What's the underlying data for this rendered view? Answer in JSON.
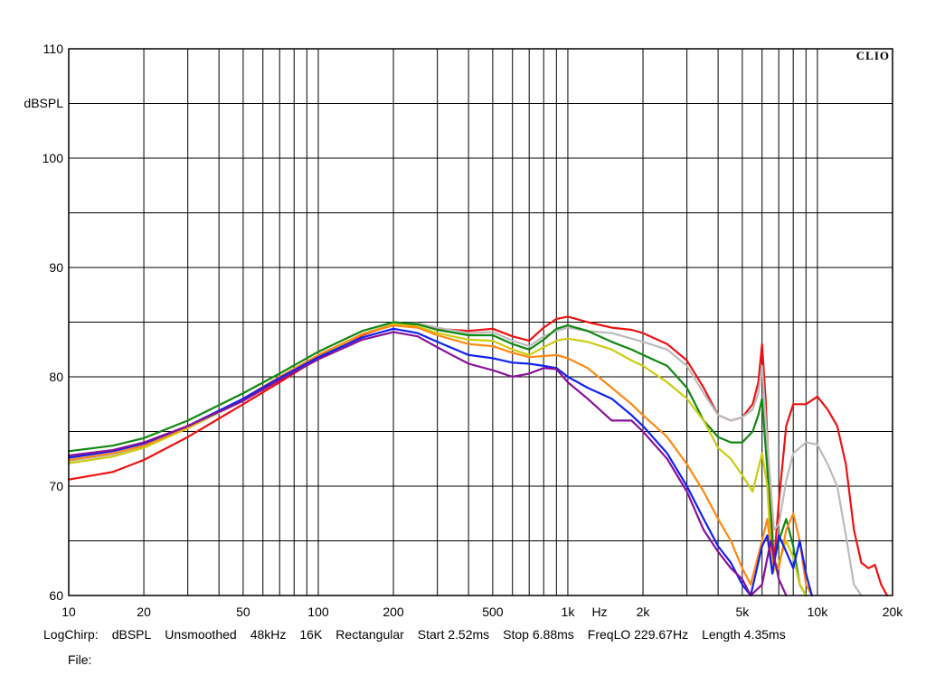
{
  "chart_data": {
    "type": "line",
    "brand": "CLIO",
    "ylabel": "dBSPL",
    "xunit": "Hz",
    "xscale": "log",
    "xlim": [
      10,
      20000
    ],
    "ylim": [
      60,
      110
    ],
    "grid": true,
    "y_ticks": [
      {
        "value": 60,
        "label": "60"
      },
      {
        "value": 70,
        "label": "70"
      },
      {
        "value": 80,
        "label": "80"
      },
      {
        "value": 90,
        "label": "90"
      },
      {
        "value": 100,
        "label": "100"
      },
      {
        "value": 110,
        "label": "110"
      }
    ],
    "y_minor": [
      65,
      75,
      85,
      95,
      105
    ],
    "x_ticks": [
      {
        "value": 10,
        "label": "10"
      },
      {
        "value": 20,
        "label": "20"
      },
      {
        "value": 50,
        "label": "50"
      },
      {
        "value": 100,
        "label": "100"
      },
      {
        "value": 200,
        "label": "200"
      },
      {
        "value": 500,
        "label": "500"
      },
      {
        "value": 1000,
        "label": "1k"
      },
      {
        "value": 2000,
        "label": "2k"
      },
      {
        "value": 5000,
        "label": "5k"
      },
      {
        "value": 10000,
        "label": "10k"
      },
      {
        "value": 20000,
        "label": "20k"
      }
    ],
    "x_grid": [
      20,
      30,
      40,
      50,
      60,
      70,
      80,
      90,
      100,
      200,
      300,
      400,
      500,
      600,
      700,
      800,
      900,
      1000,
      2000,
      3000,
      4000,
      5000,
      6000,
      7000,
      8000,
      9000,
      10000
    ],
    "series": [
      {
        "color": "#ee1111",
        "points": [
          [
            10,
            70.6
          ],
          [
            15,
            71.3
          ],
          [
            20,
            72.4
          ],
          [
            30,
            74.5
          ],
          [
            50,
            77.5
          ],
          [
            70,
            79.5
          ],
          [
            100,
            81.7
          ],
          [
            150,
            83.8
          ],
          [
            200,
            84.8
          ],
          [
            250,
            84.8
          ],
          [
            300,
            84.4
          ],
          [
            400,
            84.2
          ],
          [
            500,
            84.4
          ],
          [
            600,
            83.7
          ],
          [
            700,
            83.3
          ],
          [
            800,
            84.5
          ],
          [
            900,
            85.3
          ],
          [
            1000,
            85.5
          ],
          [
            1200,
            85.0
          ],
          [
            1500,
            84.5
          ],
          [
            1800,
            84.3
          ],
          [
            2000,
            84.0
          ],
          [
            2500,
            83.0
          ],
          [
            3000,
            81.5
          ],
          [
            3500,
            79.0
          ],
          [
            4000,
            76.5
          ],
          [
            4500,
            76.0
          ],
          [
            5000,
            76.3
          ],
          [
            5500,
            77.5
          ],
          [
            5800,
            79.5
          ],
          [
            6000,
            83.0
          ],
          [
            6200,
            78.0
          ],
          [
            6400,
            71.0
          ],
          [
            6700,
            63.0
          ],
          [
            7000,
            68.5
          ],
          [
            7500,
            75.5
          ],
          [
            8000,
            77.5
          ],
          [
            9000,
            77.5
          ],
          [
            10000,
            78.2
          ],
          [
            11000,
            77.0
          ],
          [
            12000,
            75.5
          ],
          [
            13000,
            72.0
          ],
          [
            14000,
            66.0
          ],
          [
            15000,
            63.0
          ],
          [
            16000,
            62.5
          ],
          [
            17000,
            62.8
          ],
          [
            18000,
            61.0
          ],
          [
            19000,
            60.0
          ]
        ]
      },
      {
        "color": "#bbbbbb",
        "points": [
          [
            10,
            72.3
          ],
          [
            15,
            72.9
          ],
          [
            20,
            73.6
          ],
          [
            30,
            75.3
          ],
          [
            50,
            77.8
          ],
          [
            70,
            79.7
          ],
          [
            100,
            81.8
          ],
          [
            150,
            83.9
          ],
          [
            200,
            84.9
          ],
          [
            250,
            84.9
          ],
          [
            300,
            84.5
          ],
          [
            400,
            84.0
          ],
          [
            500,
            84.1
          ],
          [
            600,
            83.3
          ],
          [
            700,
            82.8
          ],
          [
            800,
            83.7
          ],
          [
            900,
            84.2
          ],
          [
            1000,
            84.5
          ],
          [
            1200,
            84.2
          ],
          [
            1500,
            84.0
          ],
          [
            1800,
            83.5
          ],
          [
            2000,
            83.2
          ],
          [
            2500,
            82.5
          ],
          [
            3000,
            81.0
          ],
          [
            3500,
            78.5
          ],
          [
            4000,
            76.5
          ],
          [
            4500,
            76.0
          ],
          [
            5000,
            76.3
          ],
          [
            5500,
            77.0
          ],
          [
            5800,
            78.5
          ],
          [
            6000,
            81.0
          ],
          [
            6300,
            74.0
          ],
          [
            6700,
            66.0
          ],
          [
            7000,
            66.5
          ],
          [
            7500,
            70.5
          ],
          [
            8000,
            73.0
          ],
          [
            9000,
            74.0
          ],
          [
            10000,
            73.8
          ],
          [
            11000,
            72.0
          ],
          [
            12000,
            70.0
          ],
          [
            13000,
            65.5
          ],
          [
            14000,
            61.0
          ],
          [
            15000,
            60.0
          ]
        ]
      },
      {
        "color": "#118811",
        "points": [
          [
            10,
            73.2
          ],
          [
            15,
            73.7
          ],
          [
            20,
            74.4
          ],
          [
            30,
            76.0
          ],
          [
            50,
            78.5
          ],
          [
            70,
            80.3
          ],
          [
            100,
            82.3
          ],
          [
            150,
            84.2
          ],
          [
            200,
            85.0
          ],
          [
            250,
            84.8
          ],
          [
            300,
            84.3
          ],
          [
            400,
            83.8
          ],
          [
            500,
            83.8
          ],
          [
            600,
            83.0
          ],
          [
            700,
            82.5
          ],
          [
            800,
            83.4
          ],
          [
            900,
            84.4
          ],
          [
            1000,
            84.7
          ],
          [
            1200,
            84.2
          ],
          [
            1500,
            83.2
          ],
          [
            1800,
            82.5
          ],
          [
            2000,
            82.0
          ],
          [
            2500,
            81.0
          ],
          [
            3000,
            79.0
          ],
          [
            3500,
            76.0
          ],
          [
            4000,
            74.5
          ],
          [
            4500,
            74.0
          ],
          [
            5000,
            74.0
          ],
          [
            5500,
            75.0
          ],
          [
            5800,
            76.5
          ],
          [
            6000,
            78.0
          ],
          [
            6300,
            71.5
          ],
          [
            6700,
            63.0
          ],
          [
            7000,
            65.0
          ],
          [
            7500,
            67.0
          ],
          [
            8000,
            64.5
          ],
          [
            8500,
            61.0
          ],
          [
            9000,
            60.0
          ]
        ]
      },
      {
        "color": "#cccc11",
        "points": [
          [
            10,
            72.1
          ],
          [
            15,
            72.7
          ],
          [
            20,
            73.5
          ],
          [
            30,
            75.3
          ],
          [
            50,
            77.9
          ],
          [
            70,
            79.9
          ],
          [
            100,
            81.9
          ],
          [
            150,
            83.9
          ],
          [
            200,
            84.8
          ],
          [
            250,
            84.6
          ],
          [
            300,
            84.0
          ],
          [
            400,
            83.4
          ],
          [
            500,
            83.3
          ],
          [
            600,
            82.5
          ],
          [
            700,
            82.0
          ],
          [
            800,
            82.7
          ],
          [
            900,
            83.3
          ],
          [
            1000,
            83.5
          ],
          [
            1200,
            83.2
          ],
          [
            1500,
            82.5
          ],
          [
            1800,
            81.5
          ],
          [
            2000,
            81.0
          ],
          [
            2500,
            79.5
          ],
          [
            3000,
            78.0
          ],
          [
            3500,
            76.0
          ],
          [
            4000,
            73.5
          ],
          [
            4500,
            72.5
          ],
          [
            5000,
            71.0
          ],
          [
            5500,
            69.5
          ],
          [
            6000,
            73.0
          ],
          [
            6300,
            70.0
          ],
          [
            6600,
            62.0
          ],
          [
            7000,
            63.0
          ],
          [
            7500,
            65.0
          ],
          [
            8000,
            63.5
          ],
          [
            8500,
            61.0
          ],
          [
            9000,
            60.0
          ]
        ]
      },
      {
        "color": "#ff8811",
        "points": [
          [
            10,
            72.4
          ],
          [
            15,
            73.0
          ],
          [
            20,
            73.7
          ],
          [
            30,
            75.4
          ],
          [
            50,
            78.0
          ],
          [
            70,
            80.0
          ],
          [
            100,
            82.0
          ],
          [
            150,
            83.9
          ],
          [
            200,
            84.7
          ],
          [
            250,
            84.5
          ],
          [
            300,
            83.8
          ],
          [
            400,
            83.0
          ],
          [
            500,
            82.8
          ],
          [
            600,
            82.2
          ],
          [
            700,
            81.8
          ],
          [
            800,
            81.9
          ],
          [
            900,
            82.0
          ],
          [
            1000,
            81.7
          ],
          [
            1200,
            80.8
          ],
          [
            1500,
            79.0
          ],
          [
            1800,
            77.5
          ],
          [
            2000,
            76.5
          ],
          [
            2500,
            74.5
          ],
          [
            3000,
            72.0
          ],
          [
            3500,
            69.5
          ],
          [
            4000,
            67.0
          ],
          [
            4500,
            65.0
          ],
          [
            5000,
            62.5
          ],
          [
            5400,
            61.0
          ],
          [
            6000,
            65.0
          ],
          [
            6300,
            67.0
          ],
          [
            6600,
            63.0
          ],
          [
            7000,
            62.5
          ],
          [
            7500,
            66.0
          ],
          [
            8000,
            67.5
          ],
          [
            8500,
            65.0
          ],
          [
            9000,
            61.0
          ],
          [
            9500,
            60.0
          ]
        ]
      },
      {
        "color": "#1122ee",
        "points": [
          [
            10,
            72.6
          ],
          [
            15,
            73.2
          ],
          [
            20,
            73.9
          ],
          [
            30,
            75.5
          ],
          [
            50,
            78.0
          ],
          [
            70,
            79.9
          ],
          [
            100,
            81.8
          ],
          [
            150,
            83.6
          ],
          [
            200,
            84.4
          ],
          [
            250,
            84.0
          ],
          [
            300,
            83.2
          ],
          [
            400,
            82.0
          ],
          [
            500,
            81.7
          ],
          [
            600,
            81.3
          ],
          [
            700,
            81.2
          ],
          [
            800,
            81.0
          ],
          [
            900,
            80.8
          ],
          [
            1000,
            80.0
          ],
          [
            1200,
            79.0
          ],
          [
            1500,
            78.0
          ],
          [
            1800,
            76.5
          ],
          [
            2000,
            75.5
          ],
          [
            2500,
            73.0
          ],
          [
            3000,
            70.0
          ],
          [
            3500,
            67.0
          ],
          [
            4000,
            64.5
          ],
          [
            4500,
            63.0
          ],
          [
            5000,
            61.0
          ],
          [
            5400,
            60.0
          ],
          [
            6000,
            64.5
          ],
          [
            6300,
            65.5
          ],
          [
            6600,
            62.0
          ],
          [
            7000,
            65.5
          ],
          [
            7500,
            64.0
          ],
          [
            8000,
            62.5
          ],
          [
            8500,
            65.0
          ],
          [
            9000,
            62.0
          ],
          [
            9500,
            60.0
          ]
        ]
      },
      {
        "color": "#881199",
        "points": [
          [
            10,
            72.8
          ],
          [
            15,
            73.3
          ],
          [
            20,
            74.0
          ],
          [
            30,
            75.5
          ],
          [
            50,
            77.8
          ],
          [
            70,
            79.7
          ],
          [
            100,
            81.6
          ],
          [
            150,
            83.4
          ],
          [
            200,
            84.1
          ],
          [
            250,
            83.7
          ],
          [
            300,
            82.7
          ],
          [
            400,
            81.2
          ],
          [
            500,
            80.6
          ],
          [
            600,
            80.0
          ],
          [
            700,
            80.3
          ],
          [
            800,
            80.8
          ],
          [
            900,
            80.7
          ],
          [
            1000,
            79.5
          ],
          [
            1200,
            78.0
          ],
          [
            1500,
            76.0
          ],
          [
            1800,
            76.0
          ],
          [
            2000,
            75.0
          ],
          [
            2500,
            72.5
          ],
          [
            3000,
            69.5
          ],
          [
            3500,
            66.0
          ],
          [
            4000,
            64.0
          ],
          [
            4500,
            62.5
          ],
          [
            5000,
            61.5
          ],
          [
            5400,
            60.0
          ],
          [
            6000,
            61.0
          ],
          [
            6500,
            65.0
          ],
          [
            7000,
            61.5
          ],
          [
            7500,
            60.0
          ]
        ]
      }
    ]
  },
  "footer": {
    "items": [
      "LogChirp:",
      "dBSPL",
      "Unsmoothed",
      "48kHz",
      "16K",
      "Rectangular",
      "Start 2.52ms",
      "Stop 6.88ms",
      "FreqLO 229.67Hz",
      "Length 4.35ms"
    ],
    "file_label": "File:"
  }
}
